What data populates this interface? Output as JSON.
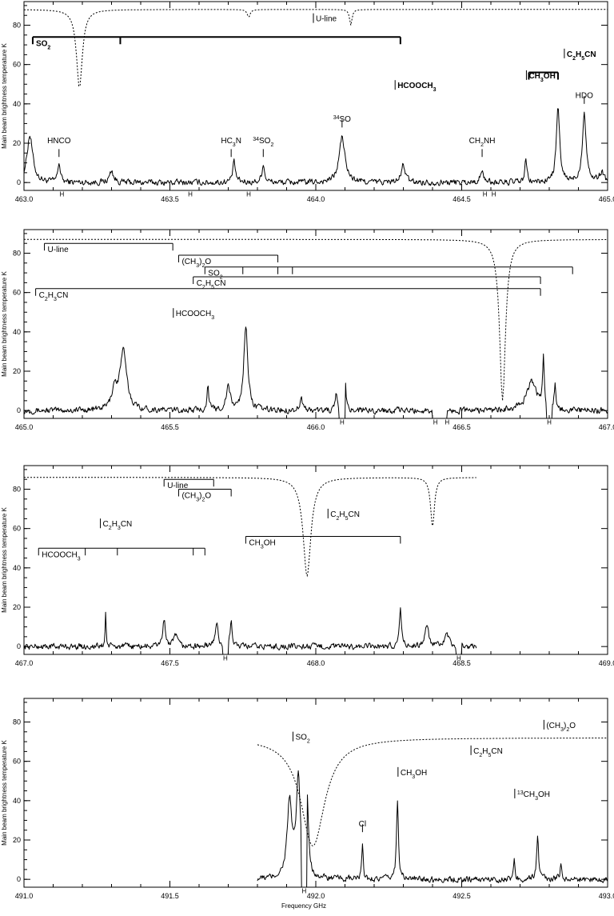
{
  "chart_data": [
    {
      "type": "line",
      "ylabel": "Main beam brightness temperature  K",
      "xlabel": "",
      "xlim": [
        463.0,
        465.0
      ],
      "ylim": [
        -4,
        92
      ],
      "x_ticks": [
        "463.0",
        "463.5",
        "464.0",
        "464.5",
        "465.0"
      ],
      "y_ticks": [
        "0",
        "20",
        "40",
        "60",
        "80"
      ],
      "spectrum_range": [
        463.0,
        465.0
      ],
      "peaks": [
        {
          "x": 463.02,
          "y": 24,
          "w": 0.012
        },
        {
          "x": 463.12,
          "y": 10,
          "w": 0.005
        },
        {
          "x": 463.3,
          "y": 6,
          "w": 0.008
        },
        {
          "x": 463.72,
          "y": 10,
          "w": 0.006
        },
        {
          "x": 463.82,
          "y": 9,
          "w": 0.006
        },
        {
          "x": 464.09,
          "y": 23,
          "w": 0.012
        },
        {
          "x": 464.3,
          "y": 9,
          "w": 0.008
        },
        {
          "x": 464.57,
          "y": 5,
          "w": 0.008
        },
        {
          "x": 464.72,
          "y": 12,
          "w": 0.004
        },
        {
          "x": 464.83,
          "y": 37,
          "w": 0.007
        },
        {
          "x": 464.92,
          "y": 35,
          "w": 0.008
        },
        {
          "x": 464.98,
          "y": 5,
          "w": 0.01
        }
      ],
      "atmosphere": {
        "base": 88,
        "dips": [
          {
            "x": 463.19,
            "depth": 40,
            "w": 0.012
          },
          {
            "x": 463.77,
            "depth": 4,
            "w": 0.006
          },
          {
            "x": 464.12,
            "depth": 8,
            "w": 0.005
          }
        ]
      },
      "labels": [
        {
          "text": "HNCO",
          "x": 463.12,
          "y": 20,
          "tick": [
            13,
            17
          ]
        },
        {
          "text": "HC",
          "sub": "3",
          "tail": "N",
          "x": 463.71,
          "y": 20,
          "tick": [
            13,
            17
          ]
        },
        {
          "text": "SO",
          "sup_pre": "34",
          "sub": "2",
          "x": 463.82,
          "y": 20,
          "tick": [
            13,
            17
          ]
        },
        {
          "text": "SO",
          "sup_pre": "34",
          "x": 464.09,
          "y": 31,
          "tick": [
            28,
            32
          ]
        },
        {
          "text": "CH",
          "sub": "2",
          "tail": "NH",
          "x": 464.57,
          "y": 20,
          "tick": [
            13,
            17
          ]
        },
        {
          "text": "HDO",
          "x": 464.92,
          "y": 43,
          "tick": [
            40,
            44
          ]
        },
        {
          "text": "HCOOCH",
          "sub": "3",
          "x": 464.28,
          "y": 48,
          "bold": true,
          "anchor": "start"
        },
        {
          "text": "CH",
          "sub": "3",
          "tail": "OH",
          "x": 464.73,
          "y": 53,
          "bold": true,
          "anchor": "start"
        },
        {
          "text": "C",
          "sub": "2",
          "tail": "H",
          "sub2": "5",
          "tail2": "CN",
          "x": 464.86,
          "y": 64,
          "bold": true,
          "anchor": "start"
        },
        {
          "text": "U-line",
          "x": 464.0,
          "y": 82,
          "anchor": "start"
        }
      ],
      "brackets": [
        {
          "label": "SO",
          "sub": "2",
          "bold_label": true,
          "y": 74,
          "x0": 463.03,
          "x1": 464.29,
          "ticks": [
            463.03,
            463.33,
            464.29
          ]
        },
        {
          "label": "",
          "y": 56,
          "x0": 464.73,
          "x1": 464.83,
          "ticks": [
            464.73,
            464.83
          ]
        }
      ],
      "h_marks": [
        {
          "x": 463.13,
          "text": "H"
        },
        {
          "x": 463.57,
          "text": "H"
        },
        {
          "x": 463.77,
          "text": "H"
        },
        {
          "x": 464.58,
          "text": "H"
        },
        {
          "x": 464.61,
          "text": "H"
        }
      ],
      "blanked": []
    },
    {
      "type": "line",
      "ylabel": "Main beam brightness temperature  K",
      "xlabel": "",
      "xlim": [
        465.0,
        467.0
      ],
      "ylim": [
        -4,
        92
      ],
      "x_ticks": [
        "465.0",
        "465.5",
        "466.0",
        "466.5",
        "467.0"
      ],
      "y_ticks": [
        "0",
        "20",
        "40",
        "60",
        "80"
      ],
      "spectrum_range": [
        465.0,
        467.0
      ],
      "peaks": [
        {
          "x": 465.34,
          "y": 30,
          "w": 0.014
        },
        {
          "x": 465.31,
          "y": 10,
          "w": 0.01
        },
        {
          "x": 465.63,
          "y": 12,
          "w": 0.004
        },
        {
          "x": 465.7,
          "y": 12,
          "w": 0.008
        },
        {
          "x": 465.76,
          "y": 44,
          "w": 0.008
        },
        {
          "x": 465.95,
          "y": 6,
          "w": 0.006
        },
        {
          "x": 466.1,
          "y": 17,
          "w": 0.004
        },
        {
          "x": 466.07,
          "y": 9,
          "w": 0.003
        },
        {
          "x": 466.74,
          "y": 15,
          "w": 0.02
        },
        {
          "x": 466.78,
          "y": 27,
          "w": 0.003
        },
        {
          "x": 466.82,
          "y": 12,
          "w": 0.004
        }
      ],
      "atmosphere": {
        "base": 87,
        "dips": [
          {
            "x": 466.64,
            "depth": 82,
            "w": 0.012
          }
        ]
      },
      "labels": [
        {
          "text": "HCOOCH",
          "sub": "3",
          "x": 465.52,
          "y": 48,
          "anchor": "start"
        }
      ],
      "brackets": [
        {
          "label": "U-line",
          "y": 85,
          "x0": 465.07,
          "x1": 465.51,
          "ticks": [
            465.07,
            465.51
          ]
        },
        {
          "label": "(CH",
          "sub": "3",
          "tail": ")",
          "sub2": "2",
          "tail2": "O",
          "y": 79,
          "x0": 465.53,
          "x1": 465.87,
          "ticks": [
            465.53,
            465.87
          ]
        },
        {
          "label": "SO",
          "sub": "2",
          "y": 73,
          "x0": 465.62,
          "x1": 466.88,
          "ticks": [
            465.62,
            465.75,
            465.87,
            465.92,
            466.88
          ]
        },
        {
          "label": "C",
          "sub": "2",
          "tail": "H",
          "sub2": "5",
          "tail2": "CN",
          "y": 68,
          "x0": 465.58,
          "x1": 466.77,
          "ticks": [
            465.58,
            466.77
          ]
        },
        {
          "label": "C",
          "sub": "2",
          "tail": "H",
          "sub2": "3",
          "tail2": "CN",
          "y": 62,
          "x0": 465.04,
          "x1": 466.77,
          "ticks": [
            465.04,
            466.77
          ]
        }
      ],
      "h_marks": [
        {
          "x": 466.09,
          "text": "H"
        },
        {
          "x": 466.41,
          "text": "H"
        },
        {
          "x": 466.45,
          "text": "H"
        },
        {
          "x": 466.8,
          "text": "H"
        }
      ],
      "blanked": [
        [
          466.08,
          466.1
        ],
        [
          466.4,
          466.45
        ],
        [
          466.79,
          466.81
        ]
      ]
    },
    {
      "type": "line",
      "ylabel": "Main beam brightness temperature  K",
      "xlabel": "",
      "xlim": [
        467.0,
        469.0
      ],
      "ylim": [
        -4,
        92
      ],
      "x_ticks": [
        "467.0",
        "467.5",
        "468.0",
        "468.5",
        "469.0"
      ],
      "y_ticks": [
        "0",
        "20",
        "40",
        "60",
        "80"
      ],
      "spectrum_range": [
        467.0,
        468.55
      ],
      "peaks": [
        {
          "x": 467.28,
          "y": 18,
          "w": 0.002
        },
        {
          "x": 467.48,
          "y": 13,
          "w": 0.006
        },
        {
          "x": 467.52,
          "y": 6,
          "w": 0.006
        },
        {
          "x": 467.66,
          "y": 12,
          "w": 0.006
        },
        {
          "x": 467.71,
          "y": 14,
          "w": 0.004
        },
        {
          "x": 468.29,
          "y": 21,
          "w": 0.004
        },
        {
          "x": 468.38,
          "y": 10,
          "w": 0.008
        },
        {
          "x": 468.45,
          "y": 6,
          "w": 0.008
        }
      ],
      "atmosphere": {
        "base": 86,
        "end": 468.55,
        "dips": [
          {
            "x": 467.97,
            "depth": 50,
            "w": 0.016
          },
          {
            "x": 468.4,
            "depth": 25,
            "w": 0.008
          }
        ]
      },
      "labels": [
        {
          "text": "C",
          "sub": "2",
          "tail": "H",
          "sub2": "3",
          "tail2": "CN",
          "x": 467.27,
          "y": 61,
          "anchor": "start"
        },
        {
          "text": "C",
          "sub": "2",
          "tail": "H",
          "sub2": "5",
          "tail2": "CN",
          "x": 468.05,
          "y": 66,
          "anchor": "start"
        }
      ],
      "brackets": [
        {
          "label": "U-line",
          "y": 85,
          "x0": 467.48,
          "x1": 467.65,
          "ticks": [
            467.48,
            467.65
          ]
        },
        {
          "label": "(CH",
          "sub": "3",
          "tail": ")",
          "sub2": "2",
          "tail2": "O",
          "y": 80,
          "x0": 467.53,
          "x1": 467.71,
          "ticks": [
            467.53,
            467.71
          ]
        },
        {
          "label": "CH",
          "sub": "3",
          "tail": "OH",
          "y": 56,
          "x0": 467.76,
          "x1": 468.29,
          "ticks": [
            467.76,
            468.29
          ]
        },
        {
          "label": "HCOOCH",
          "sub": "3",
          "y": 50,
          "x0": 467.05,
          "x1": 467.62,
          "ticks": [
            467.05,
            467.21,
            467.32,
            467.58,
            467.62
          ]
        }
      ],
      "h_marks": [
        {
          "x": 467.69,
          "text": "H"
        },
        {
          "x": 468.49,
          "text": "H"
        }
      ],
      "blanked": [
        [
          467.68,
          467.7
        ],
        [
          468.48,
          468.5
        ]
      ]
    },
    {
      "type": "line",
      "ylabel": "Main beam brightness temperature  K",
      "xlabel": "Frequency  GHz",
      "xlim": [
        491.0,
        493.0
      ],
      "ylim": [
        -4,
        92
      ],
      "x_ticks": [
        "491.0",
        "491.5",
        "492.0",
        "492.5",
        "493.0"
      ],
      "y_ticks": [
        "0",
        "20",
        "40",
        "60",
        "80"
      ],
      "spectrum_range": [
        491.8,
        493.0
      ],
      "peaks": [
        {
          "x": 491.91,
          "y": 38,
          "w": 0.01
        },
        {
          "x": 491.94,
          "y": 50,
          "w": 0.008
        },
        {
          "x": 491.97,
          "y": 40,
          "w": 0.006
        },
        {
          "x": 492.16,
          "y": 17,
          "w": 0.003
        },
        {
          "x": 492.28,
          "y": 41,
          "w": 0.004
        },
        {
          "x": 492.68,
          "y": 9,
          "w": 0.003
        },
        {
          "x": 492.76,
          "y": 22,
          "w": 0.004
        },
        {
          "x": 492.84,
          "y": 7,
          "w": 0.004
        }
      ],
      "atmosphere": {
        "base": 72,
        "start": 491.8,
        "dips": [
          {
            "x": 491.99,
            "depth": 55,
            "w": 0.05
          }
        ]
      },
      "labels": [
        {
          "text": "SO",
          "sub": "2",
          "x": 491.93,
          "y": 71,
          "anchor": "start"
        },
        {
          "text": "C",
          "sub": "2",
          "tail": "H",
          "sub2": "5",
          "tail2": "CN",
          "x": 492.54,
          "y": 64,
          "anchor": "start"
        },
        {
          "text": "CH",
          "sub": "3",
          "tail": "OH",
          "x": 492.29,
          "y": 53,
          "anchor": "start"
        },
        {
          "text": "(CH",
          "sub": "3",
          "tail": ")",
          "sub2": "2",
          "tail2": "O",
          "x": 492.79,
          "y": 77,
          "anchor": "start"
        },
        {
          "text": "CH",
          "sup_pre": "13",
          "sub": "3",
          "tail": "OH",
          "x": 492.69,
          "y": 42,
          "anchor": "start"
        },
        {
          "text": "Cl",
          "x": 492.16,
          "y": 27,
          "tick": [
            24,
            28
          ]
        }
      ],
      "brackets": [],
      "h_marks": [
        {
          "x": 491.96,
          "text": "H"
        }
      ],
      "blanked": [
        [
          491.95,
          491.97
        ]
      ]
    }
  ]
}
